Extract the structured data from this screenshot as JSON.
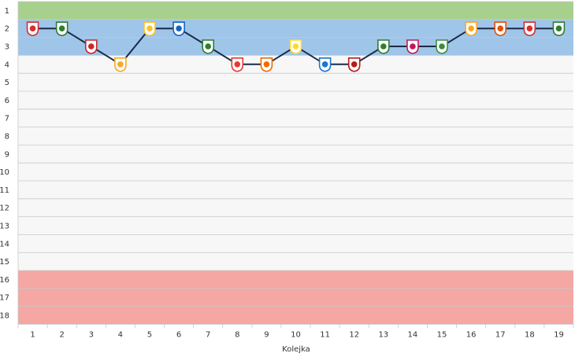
{
  "chart_data": {
    "type": "line",
    "xlabel": "Kolejka",
    "ylabel": "",
    "x": [
      1,
      2,
      3,
      4,
      5,
      6,
      7,
      8,
      9,
      10,
      11,
      12,
      13,
      14,
      15,
      16,
      17,
      18,
      19
    ],
    "y_ticks": [
      1,
      2,
      3,
      4,
      5,
      6,
      7,
      8,
      9,
      10,
      11,
      12,
      13,
      14,
      15,
      16,
      17,
      18
    ],
    "ylim": [
      1,
      18
    ],
    "y_reversed": true,
    "grid": true,
    "series": [
      {
        "values": [
          2,
          2,
          3,
          4,
          2,
          2,
          3,
          4,
          4,
          3,
          4,
          4,
          3,
          3,
          3,
          2,
          2,
          2,
          2
        ],
        "color": "#1b2a4a",
        "marker_colors": [
          "#d32f2f",
          "#2e7d32",
          "#c62828",
          "#f9a825",
          "#fbc02d",
          "#1565c0",
          "#2e7d32",
          "#e53935",
          "#ef6c00",
          "#fdd835",
          "#1976d2",
          "#b71c1c",
          "#2e7d32",
          "#c2185b",
          "#388e3c",
          "#f9a825",
          "#e65100",
          "#d32f2f",
          "#2e7d32"
        ]
      }
    ],
    "bands": [
      {
        "from": 1,
        "to": 1,
        "color": "#a8d08d"
      },
      {
        "from": 2,
        "to": 3,
        "color": "#9fc5e8"
      },
      {
        "from": 16,
        "to": 18,
        "color": "#f4a7a3"
      }
    ]
  }
}
